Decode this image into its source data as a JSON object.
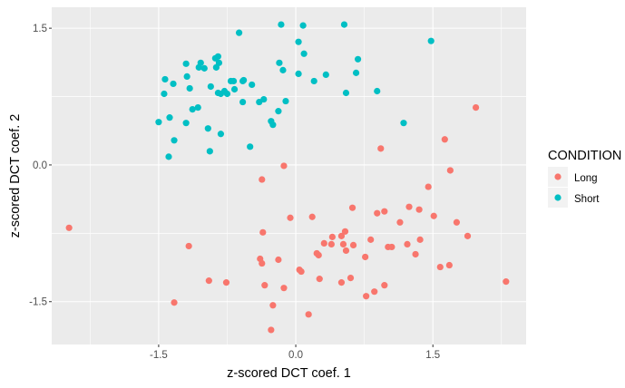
{
  "chart_data": {
    "type": "scatter",
    "title": "",
    "xlabel": "z-scored DCT coef. 1",
    "ylabel": "z-scored DCT coef. 2",
    "xlim": [
      -2.67,
      2.52
    ],
    "ylim": [
      -1.97,
      1.73
    ],
    "xticks": [
      -1.5,
      0.0,
      1.5
    ],
    "xtick_labels": [
      "-1.5",
      "0.0",
      "1.5"
    ],
    "yticks": [
      -1.5,
      0.0,
      1.5
    ],
    "ytick_labels": [
      "-1.5",
      "0.0",
      "1.5"
    ],
    "grid": true,
    "background": "#EBEBEB",
    "legend": {
      "title": "CONDITION",
      "placement": "right"
    },
    "series": [
      {
        "name": "Long",
        "color": "#F8766D",
        "points": [
          [
            0.93,
            0.18
          ],
          [
            1.63,
            0.28
          ],
          [
            -0.13,
            -0.01
          ],
          [
            -0.37,
            -0.16
          ],
          [
            -0.06,
            -0.58
          ],
          [
            0.18,
            -0.57
          ],
          [
            0.62,
            -0.47
          ],
          [
            0.89,
            -0.53
          ],
          [
            0.97,
            -0.51
          ],
          [
            -0.36,
            -0.74
          ],
          [
            0.54,
            -0.73
          ],
          [
            0.5,
            -0.78
          ],
          [
            0.4,
            -0.79
          ],
          [
            0.31,
            -0.86
          ],
          [
            0.39,
            -0.87
          ],
          [
            0.52,
            -0.87
          ],
          [
            0.63,
            -0.88
          ],
          [
            0.55,
            -0.94
          ],
          [
            0.82,
            -0.82
          ],
          [
            1.01,
            -0.9
          ],
          [
            0.23,
            -0.97
          ],
          [
            0.25,
            -0.99
          ],
          [
            0.76,
            -1.01
          ],
          [
            -0.39,
            -1.03
          ],
          [
            -0.37,
            -1.08
          ],
          [
            -0.19,
            -1.04
          ],
          [
            0.04,
            -1.15
          ],
          [
            0.06,
            -1.17
          ],
          [
            0.26,
            -1.25
          ],
          [
            0.6,
            -1.24
          ],
          [
            0.5,
            -1.29
          ],
          [
            -0.34,
            -1.32
          ],
          [
            -0.13,
            -1.35
          ],
          [
            0.97,
            -1.32
          ],
          [
            0.86,
            -1.39
          ],
          [
            0.77,
            -1.44
          ],
          [
            -0.25,
            -1.54
          ],
          [
            0.14,
            -1.64
          ],
          [
            -0.27,
            -1.81
          ],
          [
            1.97,
            0.63
          ],
          [
            1.69,
            -0.06
          ],
          [
            1.45,
            -0.24
          ],
          [
            1.24,
            -0.46
          ],
          [
            1.35,
            -0.49
          ],
          [
            1.51,
            -0.56
          ],
          [
            1.14,
            -0.63
          ],
          [
            1.76,
            -0.63
          ],
          [
            1.88,
            -0.78
          ],
          [
            1.36,
            -0.82
          ],
          [
            1.05,
            -0.9
          ],
          [
            1.22,
            -0.87
          ],
          [
            1.31,
            -0.98
          ],
          [
            1.58,
            -1.12
          ],
          [
            1.68,
            -1.1
          ],
          [
            2.3,
            -1.28
          ],
          [
            -2.48,
            -0.69
          ],
          [
            -1.17,
            -0.89
          ],
          [
            -0.95,
            -1.27
          ],
          [
            -0.76,
            -1.29
          ],
          [
            -1.33,
            -1.51
          ]
        ]
      },
      {
        "name": "Short",
        "color": "#00BFC4",
        "points": [
          [
            -0.16,
            1.54
          ],
          [
            0.08,
            1.53
          ],
          [
            -0.62,
            1.45
          ],
          [
            0.03,
            1.35
          ],
          [
            0.09,
            1.22
          ],
          [
            -1.2,
            1.11
          ],
          [
            -1.04,
            1.12
          ],
          [
            -0.85,
            1.19
          ],
          [
            -0.88,
            1.17
          ],
          [
            -0.84,
            1.12
          ],
          [
            -0.87,
            1.07
          ],
          [
            -1.06,
            1.07
          ],
          [
            -1.0,
            1.06
          ],
          [
            -0.18,
            1.12
          ],
          [
            -0.14,
            1.04
          ],
          [
            0.03,
            1.0
          ],
          [
            0.33,
            0.99
          ],
          [
            0.2,
            0.92
          ],
          [
            -1.19,
            0.97
          ],
          [
            -1.43,
            0.94
          ],
          [
            -1.34,
            0.89
          ],
          [
            -1.16,
            0.84
          ],
          [
            -0.93,
            0.86
          ],
          [
            -0.71,
            0.92
          ],
          [
            -0.68,
            0.92
          ],
          [
            -0.58,
            0.92
          ],
          [
            -0.57,
            0.93
          ],
          [
            -0.48,
            0.88
          ],
          [
            -0.67,
            0.83
          ],
          [
            -0.85,
            0.79
          ],
          [
            -0.82,
            0.78
          ],
          [
            -0.78,
            0.81
          ],
          [
            -0.75,
            0.78
          ],
          [
            -1.44,
            0.78
          ],
          [
            -0.58,
            0.69
          ],
          [
            -0.4,
            0.69
          ],
          [
            -0.35,
            0.72
          ],
          [
            -0.11,
            0.7
          ],
          [
            -0.19,
            0.59
          ],
          [
            -0.27,
            0.48
          ],
          [
            -0.25,
            0.44
          ],
          [
            -1.13,
            0.61
          ],
          [
            -1.07,
            0.63
          ],
          [
            -1.38,
            0.52
          ],
          [
            -1.5,
            0.47
          ],
          [
            -1.2,
            0.46
          ],
          [
            -0.96,
            0.4
          ],
          [
            -0.82,
            0.34
          ],
          [
            -1.33,
            0.27
          ],
          [
            -0.94,
            0.15
          ],
          [
            -0.5,
            0.2
          ],
          [
            -1.39,
            0.09
          ],
          [
            0.53,
            1.54
          ],
          [
            0.68,
            1.16
          ],
          [
            0.66,
            1.01
          ],
          [
            0.55,
            0.79
          ],
          [
            0.89,
            0.81
          ],
          [
            1.48,
            1.36
          ],
          [
            1.18,
            0.46
          ]
        ]
      }
    ]
  }
}
